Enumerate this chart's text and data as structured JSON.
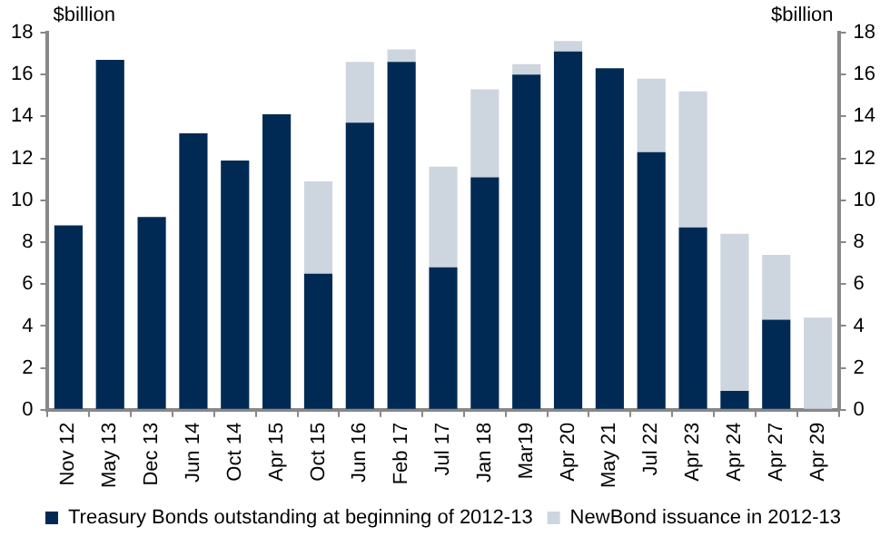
{
  "chart_data": {
    "type": "bar",
    "stacked": true,
    "ylabel": "$billion",
    "y2label": "$billion",
    "categories": [
      "Nov 12",
      "May 13",
      "Dec 13",
      "Jun 14",
      "Oct 14",
      "Apr 15",
      "Oct 15",
      "Jun 16",
      "Feb 17",
      "Jul 17",
      "Jan 18",
      "Mar19",
      "Apr 20",
      "May 21",
      "Jul 22",
      "Apr 23",
      "Apr 24",
      "Apr 27",
      "Apr 29"
    ],
    "series": [
      {
        "name": "Treasury Bonds outstanding at beginning of 2012-13",
        "color": "#002a54",
        "values": [
          8.8,
          16.7,
          9.2,
          13.2,
          11.9,
          14.1,
          6.5,
          13.7,
          16.6,
          6.8,
          11.1,
          16.0,
          17.1,
          16.3,
          12.3,
          8.7,
          0.9,
          4.3,
          0
        ]
      },
      {
        "name": "NewBond issuance in 2012-13",
        "color": "#cdd5df",
        "values": [
          0,
          0,
          0,
          0,
          0,
          0,
          4.4,
          2.9,
          0.6,
          4.8,
          4.2,
          0.5,
          0.5,
          0,
          3.5,
          6.5,
          7.5,
          3.1,
          4.4
        ]
      }
    ],
    "ylim": [
      0,
      18
    ],
    "yticks": [
      0,
      2,
      4,
      6,
      8,
      10,
      12,
      14,
      16,
      18
    ],
    "y2lim": [
      0,
      18
    ],
    "y2ticks": [
      0,
      2,
      4,
      6,
      8,
      10,
      12,
      14,
      16,
      18
    ],
    "grid": false,
    "legend": "bottom"
  }
}
